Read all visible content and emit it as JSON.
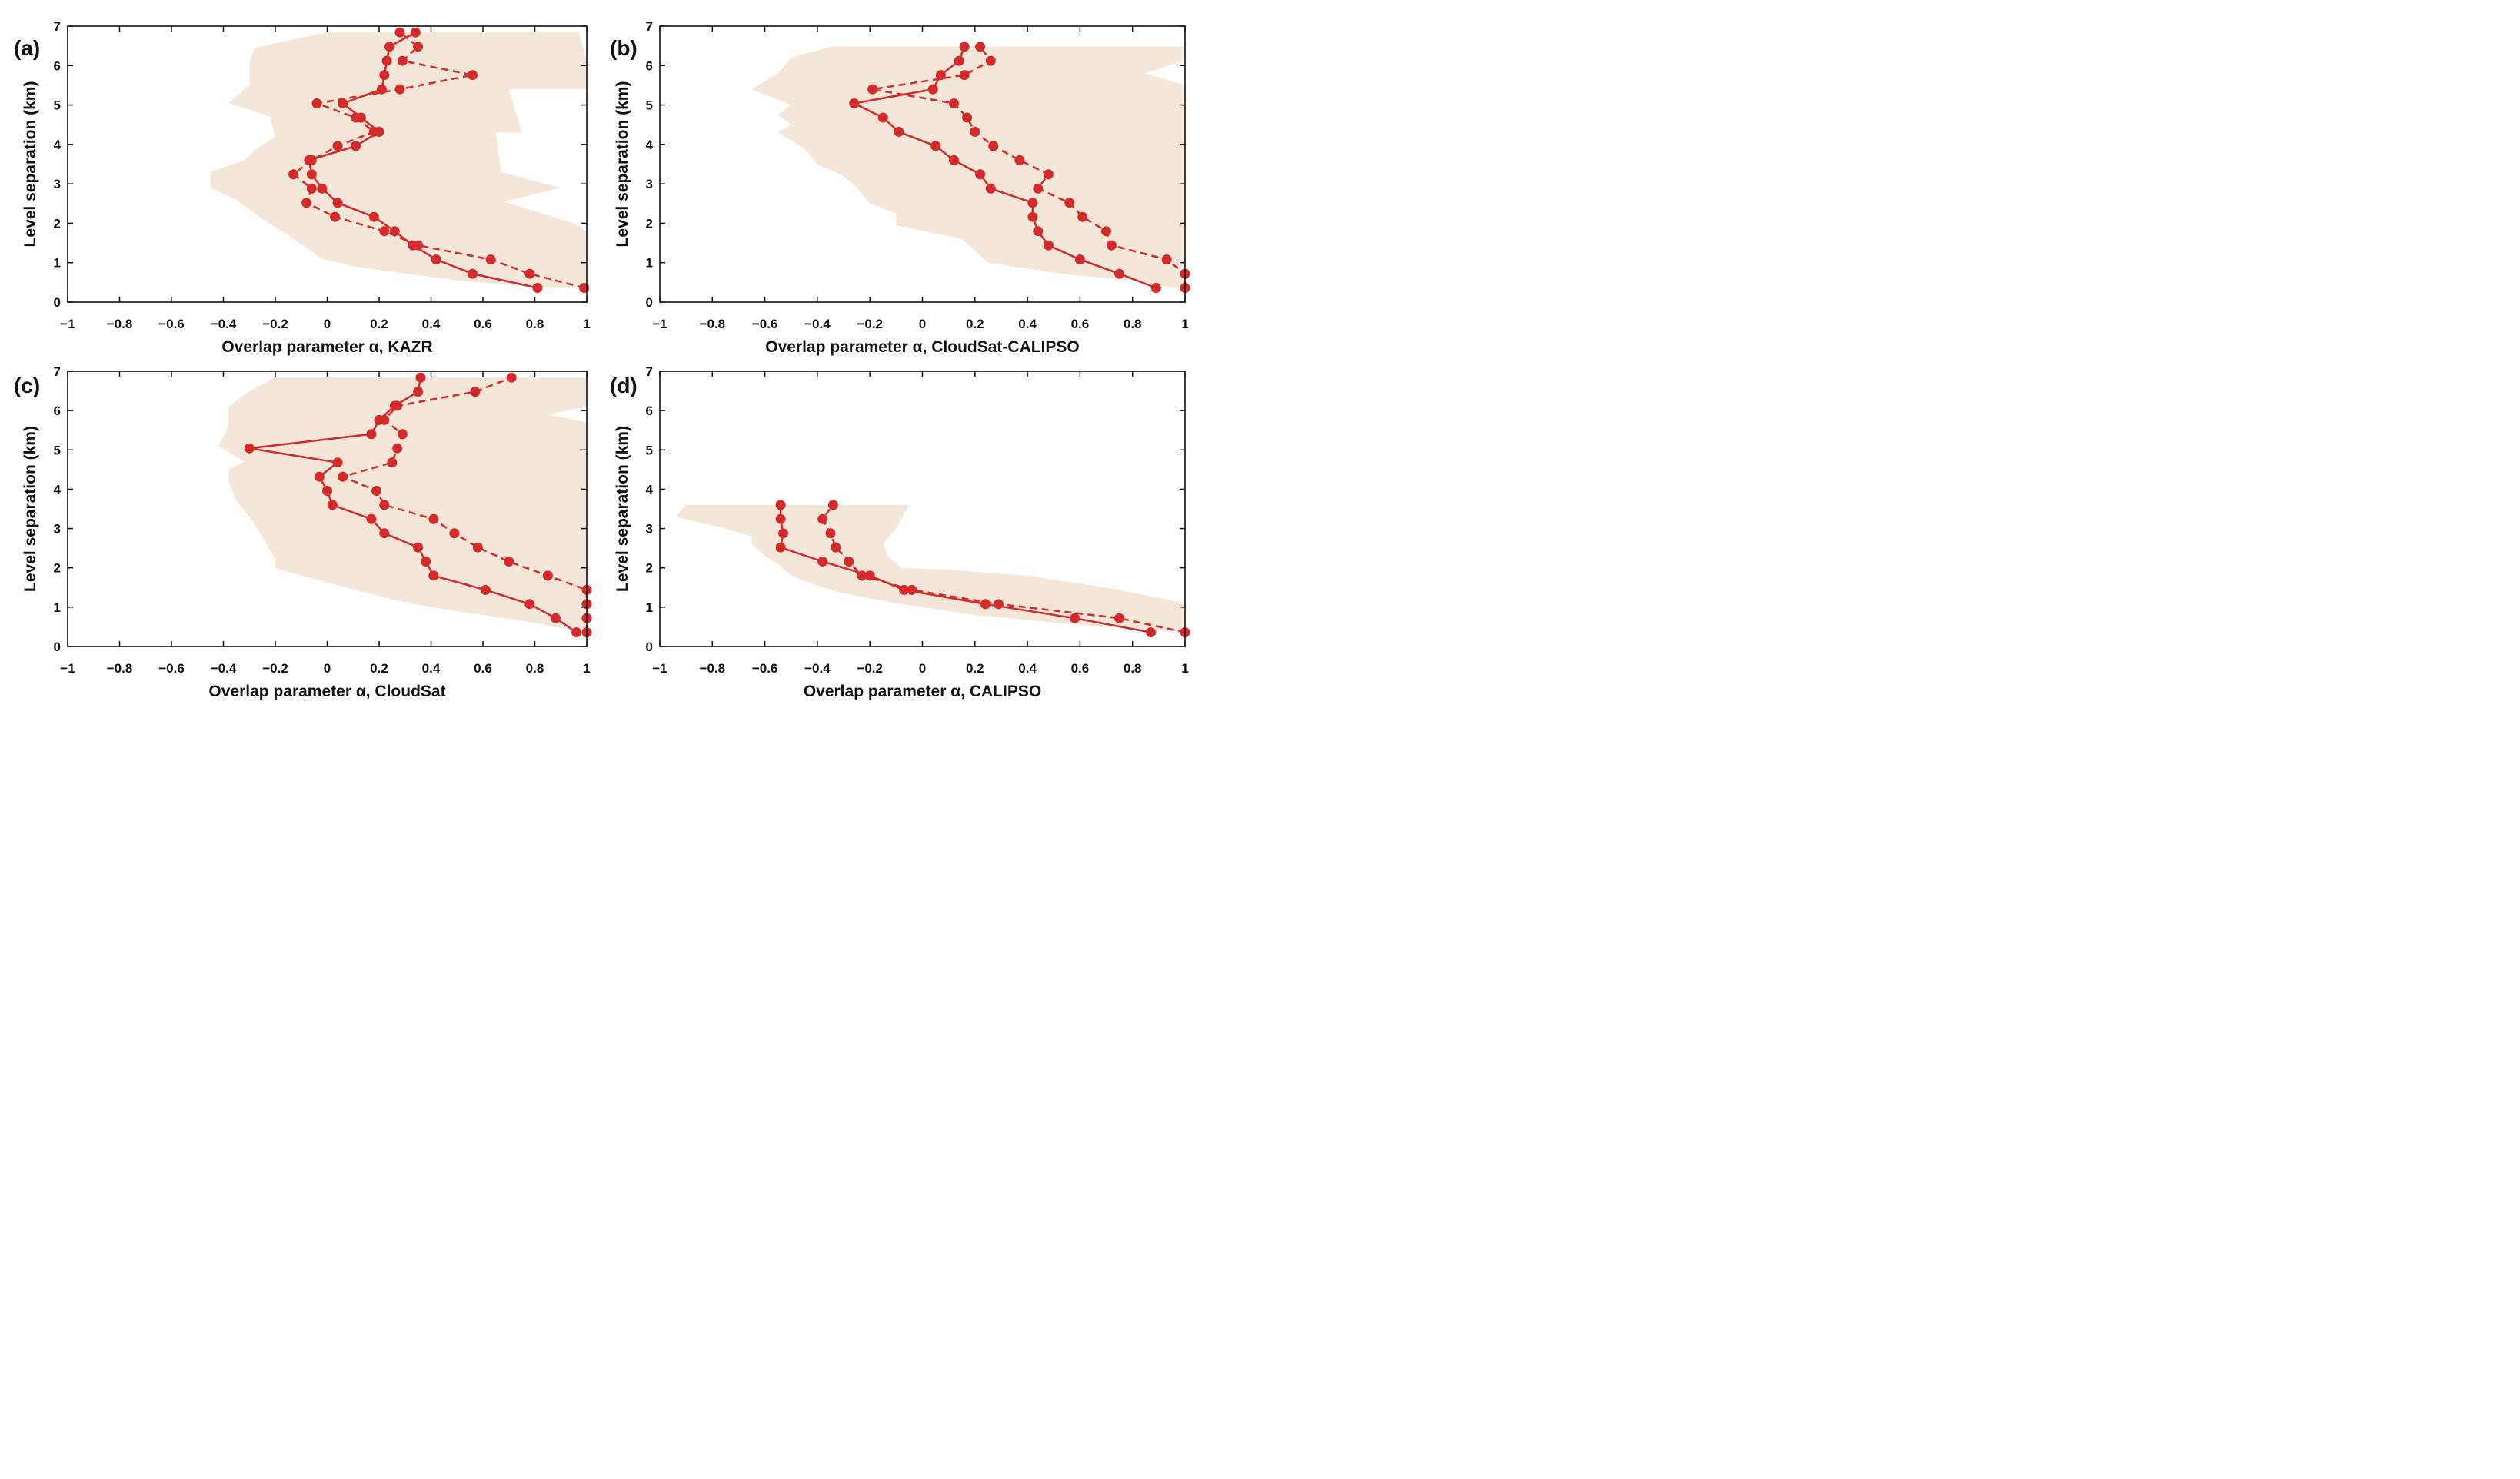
{
  "colors": {
    "line": "#d42a2a",
    "band": "#f5e6da",
    "axis": "#111111"
  },
  "chart_data": [
    {
      "panel_label": "(a)",
      "type": "line",
      "xlabel": "Overlap parameter α, KAZR",
      "ylabel": "Level separation (km)",
      "xlim": [
        -1,
        1
      ],
      "ylim": [
        0,
        7
      ],
      "xticks": [
        -1,
        -0.8,
        -0.6,
        -0.4,
        -0.2,
        0,
        0.2,
        0.4,
        0.6,
        0.8,
        1
      ],
      "xtick_labels": [
        "−1",
        "−0.8",
        "−0.6",
        "−0.4",
        "−0.2",
        "0",
        "0.2",
        "0.4",
        "0.6",
        "0.8",
        "1"
      ],
      "yticks": [
        0,
        1,
        2,
        3,
        4,
        5,
        6,
        7
      ],
      "ytick_labels": [
        "0",
        "1",
        "2",
        "3",
        "4",
        "5",
        "6",
        "7"
      ],
      "grid": false,
      "band": {
        "left": [
          [
            0.85,
            0.36
          ],
          [
            0.5,
            0.55
          ],
          [
            0.1,
            0.9
          ],
          [
            -0.02,
            1.1
          ],
          [
            -0.15,
            1.7
          ],
          [
            -0.25,
            2.1
          ],
          [
            -0.35,
            2.6
          ],
          [
            -0.45,
            2.9
          ],
          [
            -0.45,
            3.3
          ],
          [
            -0.32,
            3.6
          ],
          [
            -0.27,
            3.9
          ],
          [
            -0.2,
            4.2
          ],
          [
            -0.22,
            4.7
          ],
          [
            -0.38,
            5.05
          ],
          [
            -0.3,
            5.5
          ],
          [
            -0.3,
            6.1
          ],
          [
            -0.28,
            6.45
          ],
          [
            0,
            6.85
          ]
        ],
        "right": [
          [
            0.8,
            6.85
          ],
          [
            0.97,
            6.85
          ],
          [
            1.0,
            6.1
          ],
          [
            1.0,
            5.4
          ],
          [
            0.7,
            5.4
          ],
          [
            0.75,
            4.3
          ],
          [
            0.65,
            4.3
          ],
          [
            0.67,
            3.3
          ],
          [
            0.9,
            2.9
          ],
          [
            0.68,
            2.55
          ],
          [
            0.95,
            2.0
          ],
          [
            1.0,
            1.8
          ],
          [
            1.0,
            0.36
          ]
        ]
      },
      "series": [
        {
          "style": "solid",
          "points": [
            [
              0.81,
              0.36
            ],
            [
              0.56,
              0.72
            ],
            [
              0.42,
              1.08
            ],
            [
              0.33,
              1.44
            ],
            [
              0.26,
              1.8
            ],
            [
              0.18,
              2.16
            ],
            [
              0.04,
              2.52
            ],
            [
              -0.02,
              2.88
            ],
            [
              -0.06,
              3.24
            ],
            [
              -0.07,
              3.6
            ],
            [
              0.11,
              3.96
            ],
            [
              0.2,
              4.32
            ],
            [
              0.13,
              4.68
            ],
            [
              0.06,
              5.04
            ],
            [
              0.21,
              5.4
            ],
            [
              0.22,
              5.76
            ],
            [
              0.23,
              6.12
            ],
            [
              0.24,
              6.48
            ],
            [
              0.34,
              6.84
            ]
          ]
        },
        {
          "style": "dashed",
          "points": [
            [
              0.99,
              0.36
            ],
            [
              0.78,
              0.72
            ],
            [
              0.63,
              1.08
            ],
            [
              0.35,
              1.44
            ],
            [
              0.22,
              1.8
            ],
            [
              0.03,
              2.16
            ],
            [
              -0.08,
              2.52
            ],
            [
              -0.06,
              2.88
            ],
            [
              -0.13,
              3.24
            ],
            [
              -0.06,
              3.6
            ],
            [
              0.04,
              3.96
            ],
            [
              0.18,
              4.32
            ],
            [
              0.11,
              4.68
            ],
            [
              -0.04,
              5.04
            ],
            [
              0.28,
              5.4
            ],
            [
              0.56,
              5.76
            ],
            [
              0.29,
              6.12
            ],
            [
              0.35,
              6.48
            ],
            [
              0.28,
              6.84
            ]
          ]
        }
      ]
    },
    {
      "panel_label": "(b)",
      "type": "line",
      "xlabel": "Overlap parameter α, CloudSat-CALIPSO",
      "ylabel": "Level separation (km)",
      "xlim": [
        -1,
        1
      ],
      "ylim": [
        0,
        7
      ],
      "xticks": [
        -1,
        -0.8,
        -0.6,
        -0.4,
        -0.2,
        0,
        0.2,
        0.4,
        0.6,
        0.8,
        1
      ],
      "xtick_labels": [
        "−1",
        "−0.8",
        "−0.6",
        "−0.4",
        "−0.2",
        "0",
        "0.2",
        "0.4",
        "0.6",
        "0.8",
        "1"
      ],
      "yticks": [
        0,
        1,
        2,
        3,
        4,
        5,
        6,
        7
      ],
      "ytick_labels": [
        "0",
        "1",
        "2",
        "3",
        "4",
        "5",
        "6",
        "7"
      ],
      "grid": false,
      "band": {
        "left": [
          [
            0.95,
            0.36
          ],
          [
            0.8,
            0.55
          ],
          [
            0.55,
            0.7
          ],
          [
            0.25,
            1.0
          ],
          [
            0.15,
            1.6
          ],
          [
            -0.1,
            1.95
          ],
          [
            -0.1,
            2.25
          ],
          [
            -0.2,
            2.5
          ],
          [
            -0.25,
            2.9
          ],
          [
            -0.3,
            3.2
          ],
          [
            -0.4,
            3.5
          ],
          [
            -0.45,
            3.9
          ],
          [
            -0.55,
            4.3
          ],
          [
            -0.5,
            4.5
          ],
          [
            -0.55,
            4.75
          ],
          [
            -0.5,
            5.0
          ],
          [
            -0.65,
            5.4
          ],
          [
            -0.55,
            5.8
          ],
          [
            -0.5,
            6.2
          ],
          [
            -0.35,
            6.48
          ]
        ],
        "right": [
          [
            1.0,
            6.48
          ],
          [
            1.0,
            6.15
          ],
          [
            0.85,
            5.8
          ],
          [
            1.0,
            5.5
          ],
          [
            1.0,
            0.36
          ]
        ]
      },
      "series": [
        {
          "style": "solid",
          "points": [
            [
              0.89,
              0.36
            ],
            [
              0.75,
              0.72
            ],
            [
              0.6,
              1.08
            ],
            [
              0.48,
              1.44
            ],
            [
              0.44,
              1.8
            ],
            [
              0.42,
              2.16
            ],
            [
              0.42,
              2.52
            ],
            [
              0.26,
              2.88
            ],
            [
              0.22,
              3.24
            ],
            [
              0.12,
              3.6
            ],
            [
              0.05,
              3.96
            ],
            [
              -0.09,
              4.32
            ],
            [
              -0.15,
              4.68
            ],
            [
              -0.26,
              5.04
            ],
            [
              0.04,
              5.4
            ],
            [
              0.07,
              5.76
            ],
            [
              0.14,
              6.12
            ],
            [
              0.16,
              6.48
            ]
          ]
        },
        {
          "style": "dashed",
          "points": [
            [
              1.0,
              0.36
            ],
            [
              1.0,
              0.72
            ],
            [
              0.93,
              1.08
            ],
            [
              0.72,
              1.44
            ],
            [
              0.7,
              1.8
            ],
            [
              0.61,
              2.16
            ],
            [
              0.56,
              2.52
            ],
            [
              0.44,
              2.88
            ],
            [
              0.48,
              3.24
            ],
            [
              0.37,
              3.6
            ],
            [
              0.27,
              3.96
            ],
            [
              0.2,
              4.32
            ],
            [
              0.17,
              4.68
            ],
            [
              0.12,
              5.04
            ],
            [
              -0.19,
              5.4
            ],
            [
              0.16,
              5.76
            ],
            [
              0.26,
              6.12
            ],
            [
              0.22,
              6.48
            ]
          ]
        }
      ]
    },
    {
      "panel_label": "(c)",
      "type": "line",
      "xlabel": "Overlap parameter α, CloudSat",
      "ylabel": "Level separation (km)",
      "xlim": [
        -1,
        1
      ],
      "ylim": [
        0,
        7
      ],
      "xticks": [
        -1,
        -0.8,
        -0.6,
        -0.4,
        -0.2,
        0,
        0.2,
        0.4,
        0.6,
        0.8,
        1
      ],
      "xtick_labels": [
        "−1",
        "−0.8",
        "−0.6",
        "−0.4",
        "−0.2",
        "0",
        "0.2",
        "0.4",
        "0.6",
        "0.8",
        "1"
      ],
      "yticks": [
        0,
        1,
        2,
        3,
        4,
        5,
        6,
        7
      ],
      "ytick_labels": [
        "0",
        "1",
        "2",
        "3",
        "4",
        "5",
        "6",
        "7"
      ],
      "grid": false,
      "band": {
        "left": [
          [
            1.0,
            0.36
          ],
          [
            0.8,
            0.6
          ],
          [
            0.6,
            0.8
          ],
          [
            0.4,
            1.0
          ],
          [
            0.25,
            1.2
          ],
          [
            0.1,
            1.45
          ],
          [
            -0.1,
            1.8
          ],
          [
            -0.2,
            2.0
          ],
          [
            -0.2,
            2.2
          ],
          [
            -0.25,
            2.8
          ],
          [
            -0.3,
            3.3
          ],
          [
            -0.35,
            3.7
          ],
          [
            -0.38,
            4.2
          ],
          [
            -0.38,
            4.5
          ],
          [
            -0.32,
            4.7
          ],
          [
            -0.42,
            5.1
          ],
          [
            -0.38,
            5.6
          ],
          [
            -0.38,
            6.1
          ],
          [
            -0.3,
            6.5
          ],
          [
            -0.2,
            6.84
          ]
        ],
        "right": [
          [
            1.0,
            6.84
          ],
          [
            1.0,
            6.1
          ],
          [
            0.85,
            5.9
          ],
          [
            1.0,
            5.7
          ],
          [
            1.0,
            0.36
          ]
        ]
      },
      "series": [
        {
          "style": "solid",
          "points": [
            [
              0.96,
              0.36
            ],
            [
              0.88,
              0.72
            ],
            [
              0.78,
              1.08
            ],
            [
              0.61,
              1.44
            ],
            [
              0.41,
              1.8
            ],
            [
              0.38,
              2.16
            ],
            [
              0.35,
              2.52
            ],
            [
              0.22,
              2.88
            ],
            [
              0.17,
              3.24
            ],
            [
              0.02,
              3.6
            ],
            [
              0.0,
              3.96
            ],
            [
              -0.03,
              4.32
            ],
            [
              0.04,
              4.68
            ],
            [
              -0.3,
              5.04
            ],
            [
              0.17,
              5.4
            ],
            [
              0.2,
              5.76
            ],
            [
              0.26,
              6.12
            ],
            [
              0.35,
              6.48
            ],
            [
              0.36,
              6.84
            ]
          ]
        },
        {
          "style": "dashed",
          "points": [
            [
              1.0,
              0.36
            ],
            [
              1.0,
              0.72
            ],
            [
              1.0,
              1.08
            ],
            [
              1.0,
              1.44
            ],
            [
              0.85,
              1.8
            ],
            [
              0.7,
              2.16
            ],
            [
              0.58,
              2.52
            ],
            [
              0.49,
              2.88
            ],
            [
              0.41,
              3.24
            ],
            [
              0.22,
              3.6
            ],
            [
              0.19,
              3.96
            ],
            [
              0.06,
              4.32
            ],
            [
              0.25,
              4.68
            ],
            [
              0.27,
              5.04
            ],
            [
              0.29,
              5.4
            ],
            [
              0.22,
              5.76
            ],
            [
              0.27,
              6.12
            ],
            [
              0.57,
              6.48
            ],
            [
              0.71,
              6.84
            ]
          ]
        }
      ]
    },
    {
      "panel_label": "(d)",
      "type": "line",
      "xlabel": "Overlap parameter α, CALIPSO",
      "ylabel": "Level separation (km)",
      "xlim": [
        -1,
        1
      ],
      "ylim": [
        0,
        7
      ],
      "xticks": [
        -1,
        -0.8,
        -0.6,
        -0.4,
        -0.2,
        0,
        0.2,
        0.4,
        0.6,
        0.8,
        1
      ],
      "xtick_labels": [
        "−1",
        "−0.8",
        "−0.6",
        "−0.4",
        "−0.2",
        "0",
        "0.2",
        "0.4",
        "0.6",
        "0.8",
        "1"
      ],
      "yticks": [
        0,
        1,
        2,
        3,
        4,
        5,
        6,
        7
      ],
      "ytick_labels": [
        "0",
        "1",
        "2",
        "3",
        "4",
        "5",
        "6",
        "7"
      ],
      "grid": false,
      "band": {
        "left": [
          [
            1.0,
            0.36
          ],
          [
            0.6,
            0.55
          ],
          [
            0.2,
            0.8
          ],
          [
            -0.1,
            1.1
          ],
          [
            -0.3,
            1.35
          ],
          [
            -0.4,
            1.55
          ],
          [
            -0.5,
            1.8
          ],
          [
            -0.55,
            2.1
          ],
          [
            -0.6,
            2.3
          ],
          [
            -0.65,
            2.6
          ],
          [
            -0.65,
            2.8
          ],
          [
            -0.75,
            3.0
          ],
          [
            -0.94,
            3.3
          ],
          [
            -0.9,
            3.6
          ]
        ],
        "right": [
          [
            -0.05,
            3.6
          ],
          [
            -0.1,
            3.0
          ],
          [
            -0.15,
            2.6
          ],
          [
            -0.13,
            2.3
          ],
          [
            -0.08,
            2.0
          ],
          [
            0.1,
            1.95
          ],
          [
            0.4,
            1.8
          ],
          [
            0.7,
            1.5
          ],
          [
            1.0,
            1.1
          ],
          [
            1.0,
            0.36
          ]
        ]
      },
      "series": [
        {
          "style": "solid",
          "points": [
            [
              0.87,
              0.36
            ],
            [
              0.58,
              0.72
            ],
            [
              0.24,
              1.08
            ],
            [
              -0.07,
              1.44
            ],
            [
              -0.2,
              1.8
            ],
            [
              -0.38,
              2.16
            ],
            [
              -0.54,
              2.52
            ],
            [
              -0.53,
              2.88
            ],
            [
              -0.54,
              3.24
            ],
            [
              -0.54,
              3.6
            ]
          ]
        },
        {
          "style": "dashed",
          "points": [
            [
              1.0,
              0.36
            ],
            [
              0.75,
              0.72
            ],
            [
              0.29,
              1.08
            ],
            [
              -0.04,
              1.44
            ],
            [
              -0.23,
              1.8
            ],
            [
              -0.28,
              2.16
            ],
            [
              -0.33,
              2.52
            ],
            [
              -0.35,
              2.88
            ],
            [
              -0.38,
              3.24
            ],
            [
              -0.34,
              3.6
            ]
          ]
        }
      ]
    }
  ]
}
